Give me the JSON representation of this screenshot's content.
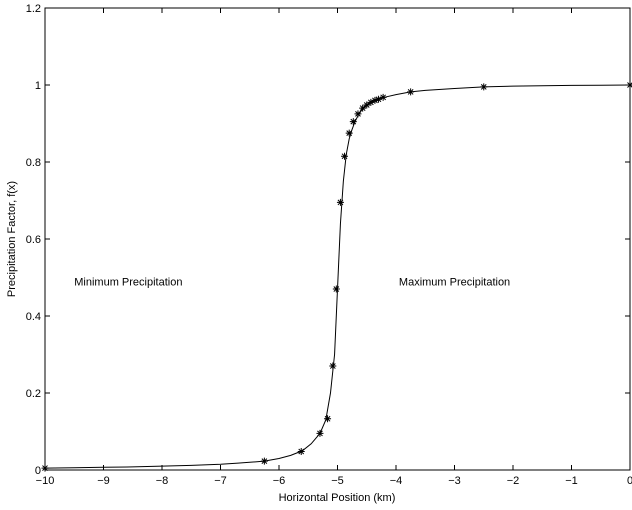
{
  "chart_data": {
    "type": "line",
    "title": "",
    "xlabel": "Horizontal Position (km)",
    "ylabel": "Precipitation Factor, f(x)",
    "xlim": [
      -10,
      0
    ],
    "ylim": [
      0,
      1.2
    ],
    "xticks": [
      -10,
      -9,
      -8,
      -7,
      -6,
      -5,
      -4,
      -3,
      -2,
      -1,
      0
    ],
    "yticks": [
      0,
      0.2,
      0.4,
      0.6,
      0.8,
      1,
      1.2
    ],
    "grid": false,
    "legend": "none",
    "line_color": "#000000",
    "curve": {
      "x": [
        -10,
        -9.5,
        -9,
        -8.5,
        -8,
        -7.5,
        -7,
        -6.7,
        -6.5,
        -6.25,
        -6,
        -5.8,
        -5.6,
        -5.45,
        -5.3,
        -5.2,
        -5.12,
        -5.05,
        -5.0,
        -4.95,
        -4.9,
        -4.85,
        -4.8,
        -4.75,
        -4.7,
        -4.65,
        -4.6,
        -4.5,
        -4.4,
        -4.3,
        -4.2,
        -4.0,
        -3.75,
        -3.5,
        -3.0,
        -2.5,
        -2.0,
        -1.5,
        -1.0,
        -0.5,
        0
      ],
      "y": [
        0.005,
        0.006,
        0.007,
        0.008,
        0.01,
        0.012,
        0.015,
        0.018,
        0.02,
        0.023,
        0.03,
        0.038,
        0.05,
        0.068,
        0.095,
        0.13,
        0.2,
        0.3,
        0.47,
        0.64,
        0.75,
        0.82,
        0.86,
        0.885,
        0.905,
        0.92,
        0.932,
        0.947,
        0.957,
        0.963,
        0.968,
        0.975,
        0.982,
        0.986,
        0.991,
        0.995,
        0.997,
        0.998,
        0.999,
        0.9995,
        1.0
      ]
    },
    "markers": {
      "symbol": "asterisk",
      "x": [
        -10,
        -6.25,
        -5.62,
        -5.3,
        -5.17,
        -5.08,
        -5.02,
        -4.95,
        -4.88,
        -4.8,
        -4.73,
        -4.65,
        -4.57,
        -4.5,
        -4.43,
        -4.36,
        -4.3,
        -4.22,
        -3.75,
        -2.5,
        0
      ],
      "y": [
        0.005,
        0.023,
        0.048,
        0.095,
        0.133,
        0.27,
        0.47,
        0.695,
        0.815,
        0.875,
        0.905,
        0.925,
        0.94,
        0.948,
        0.955,
        0.96,
        0.963,
        0.968,
        0.982,
        0.995,
        1.0
      ]
    },
    "annotations": [
      {
        "text": "Minimum Precipitation",
        "x": -9.5,
        "y": 0.49
      },
      {
        "text": "Maximum Precipitation",
        "x": -3.95,
        "y": 0.49
      }
    ]
  }
}
